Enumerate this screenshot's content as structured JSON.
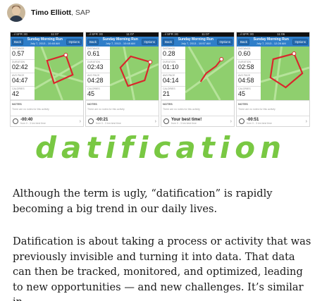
{
  "author": {
    "name": "Timo Elliott",
    "org": ", SAP"
  },
  "phones": [
    {
      "status_left": "..ıl SFR 3G",
      "status_time": "11:07",
      "back": "Back",
      "title": "Sunday Morning Run",
      "date": "July 7, 2013 - 10:48 AM",
      "options": "Options",
      "stats": [
        "0.57",
        "02:42",
        "04:47",
        "42"
      ],
      "notes_title": "NOTES",
      "notes_text": "There are no notes for this activity",
      "footer_value": "-00:40",
      "footer_sub": "from 0 - 3 km best time"
    },
    {
      "status_left": "..ıl SFR 3G",
      "status_time": "11:07",
      "back": "Back",
      "title": "Sunday Morning Run",
      "date": "July 7, 2013 - 10:48 AM",
      "options": "Options",
      "stats": [
        "0.61",
        "02:43",
        "04:28",
        "45"
      ],
      "notes_title": "NOTES",
      "notes_text": "There are no notes for this activity",
      "footer_value": "-00:21",
      "footer_sub": "from 0 - 3 km best time"
    },
    {
      "status_left": "..ıl SFR 3G",
      "status_time": "11:07",
      "back": "Back",
      "title": "Sunday Morning Run",
      "date": "July 7, 2013 - 10:57 AM",
      "options": "Options",
      "stats": [
        "0.28",
        "01:10",
        "04:14",
        "21"
      ],
      "notes_title": "NOTES",
      "notes_text": "There are no notes for this activity",
      "footer_value": "Your best time!",
      "footer_sub": "from 0 - 3 km best time"
    },
    {
      "status_left": "..ıl SFR 3G",
      "status_time": "11:06",
      "back": "Back",
      "title": "Sunday Morning Run",
      "date": "July 7, 2013 - 12:28 AM",
      "options": "Options",
      "stats": [
        "0.60",
        "02:58",
        "04:58",
        "45"
      ],
      "notes_title": "NOTES",
      "notes_text": "There are no notes for this activity",
      "footer_value": "-00:51",
      "footer_sub": "from 0 - 3 km best time"
    }
  ],
  "logo_text": "DATIFICATION",
  "paragraphs": [
    "Although the term is ugly, “datification” is rapidly becoming a big trend in our daily lives.",
    "Datification is about taking a process or activity that was previously invisible and turning it into data. That data can then be tracked, monitored, and optimized, leading to new opportunities — and new challenges. It’s similar in"
  ],
  "colors": {
    "logo_green": "#79c843",
    "nav_blue": "#2f7ec9",
    "map_green": "#8fcf6e",
    "route_red": "#d9262c"
  }
}
